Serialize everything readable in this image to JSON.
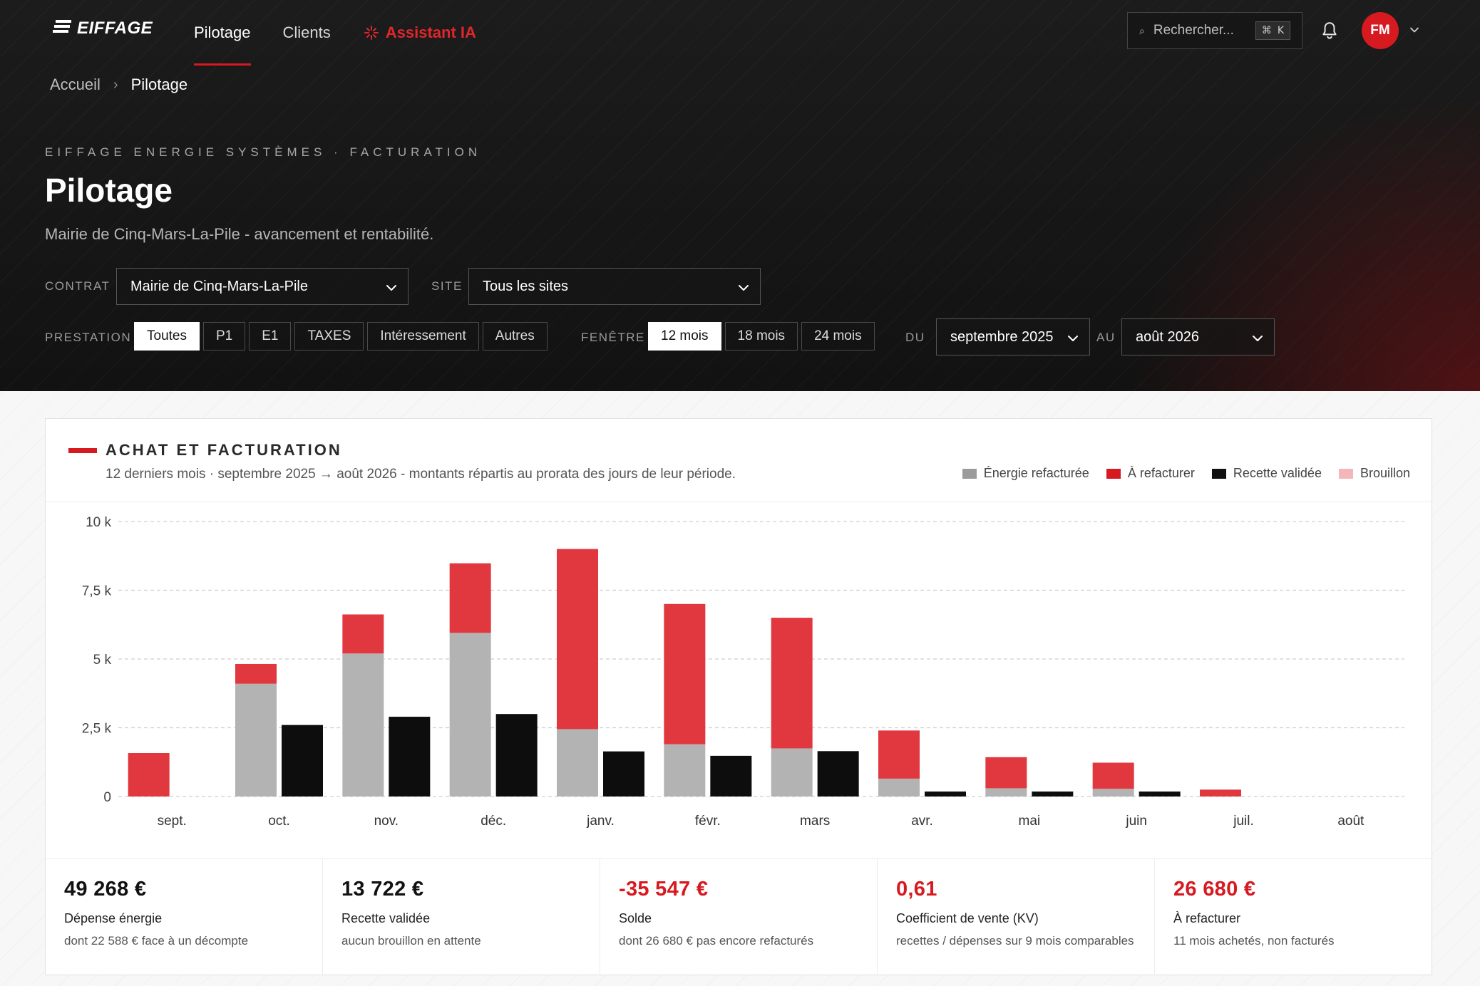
{
  "brand": {
    "name": "EIFFAGE"
  },
  "nav": {
    "items": [
      {
        "label": "Pilotage",
        "active": true
      },
      {
        "label": "Clients",
        "active": false
      }
    ],
    "ai_label": "Assistant IA"
  },
  "search": {
    "placeholder": "Rechercher...",
    "shortcut_symbol": "⌘",
    "shortcut_key": "K"
  },
  "user": {
    "initials": "FM"
  },
  "breadcrumb": {
    "home": "Accueil",
    "current": "Pilotage"
  },
  "header": {
    "overline": "EIFFAGE ENERGIE SYSTÈMES · FACTURATION",
    "title": "Pilotage",
    "subtitle": "Mairie de Cinq-Mars-La-Pile - avancement et rentabilité."
  },
  "filters": {
    "contrat_label": "CONTRAT",
    "contrat_value": "Mairie de Cinq-Mars-La-Pile",
    "site_label": "SITE",
    "site_value": "Tous les sites",
    "prestation_label": "PRESTATION",
    "prestations": [
      "Toutes",
      "P1",
      "E1",
      "TAXES",
      "Intéressement",
      "Autres"
    ],
    "prestation_active": "Toutes",
    "fenetre_label": "FENÊTRE",
    "fenetres": [
      "12 mois",
      "18 mois",
      "24 mois"
    ],
    "fenetre_active": "12 mois",
    "du_label": "DU",
    "du_value": "septembre 2025",
    "au_label": "AU",
    "au_value": "août 2026"
  },
  "card": {
    "title": "ACHAT ET FACTURATION",
    "subtitle": "12 derniers mois · septembre 2025 → août 2026 - montants répartis au prorata des jours de leur période.",
    "legend": [
      {
        "label": "Énergie refacturée",
        "color": "#9b9b9b"
      },
      {
        "label": "À refacturer",
        "color": "#d71920"
      },
      {
        "label": "Recette validée",
        "color": "#111111"
      },
      {
        "label": "Brouillon",
        "color": "#f4b6b8"
      }
    ]
  },
  "colors": {
    "energie": "#b3b3b3",
    "a_refacturer": "#e0383e",
    "recette": "#0d0d0d",
    "brouillon": "#f4b6b8",
    "accent": "#d71920"
  },
  "chart_data": {
    "type": "bar",
    "categories": [
      "sept.",
      "oct.",
      "nov.",
      "déc.",
      "janv.",
      "févr.",
      "mars",
      "avr.",
      "mai",
      "juin",
      "juil.",
      "août"
    ],
    "y_ticks": [
      {
        "value": 0,
        "label": "0"
      },
      {
        "value": 2500,
        "label": "2,5 k"
      },
      {
        "value": 5000,
        "label": "5 k"
      },
      {
        "value": 7500,
        "label": "7,5 k"
      },
      {
        "value": 10000,
        "label": "10 k"
      }
    ],
    "ylim": [
      0,
      10000
    ],
    "grid": true,
    "stacked_series": [
      {
        "name": "Énergie refacturée",
        "values": [
          0,
          4100,
          5200,
          5950,
          2450,
          1900,
          1750,
          650,
          300,
          280,
          0,
          0
        ]
      },
      {
        "name": "À refacturer",
        "values": [
          1580,
          720,
          1420,
          2530,
          6550,
          5100,
          4750,
          1750,
          1130,
          950,
          250,
          0
        ]
      }
    ],
    "series": [
      {
        "name": "Recette validée",
        "values": [
          0,
          2600,
          2900,
          3000,
          1640,
          1480,
          1650,
          180,
          180,
          180,
          0,
          0
        ]
      },
      {
        "name": "Brouillon",
        "values": [
          0,
          0,
          0,
          0,
          0,
          0,
          0,
          0,
          0,
          0,
          0,
          0
        ]
      }
    ]
  },
  "kpis": [
    {
      "value": "49 268 €",
      "label": "Dépense énergie",
      "desc": "dont 22 588 € face à un décompte",
      "negative": false
    },
    {
      "value": "13 722 €",
      "label": "Recette validée",
      "desc": "aucun brouillon en attente",
      "negative": false
    },
    {
      "value": "-35 547 €",
      "label": "Solde",
      "desc": "dont 26 680 € pas encore refacturés",
      "negative": true
    },
    {
      "value": "0,61",
      "label": "Coefficient de vente (KV)",
      "desc": "recettes / dépenses sur 9 mois comparables",
      "negative": true
    },
    {
      "value": "26 680 €",
      "label": "À refacturer",
      "desc": "11 mois achetés, non facturés",
      "negative": true
    }
  ]
}
